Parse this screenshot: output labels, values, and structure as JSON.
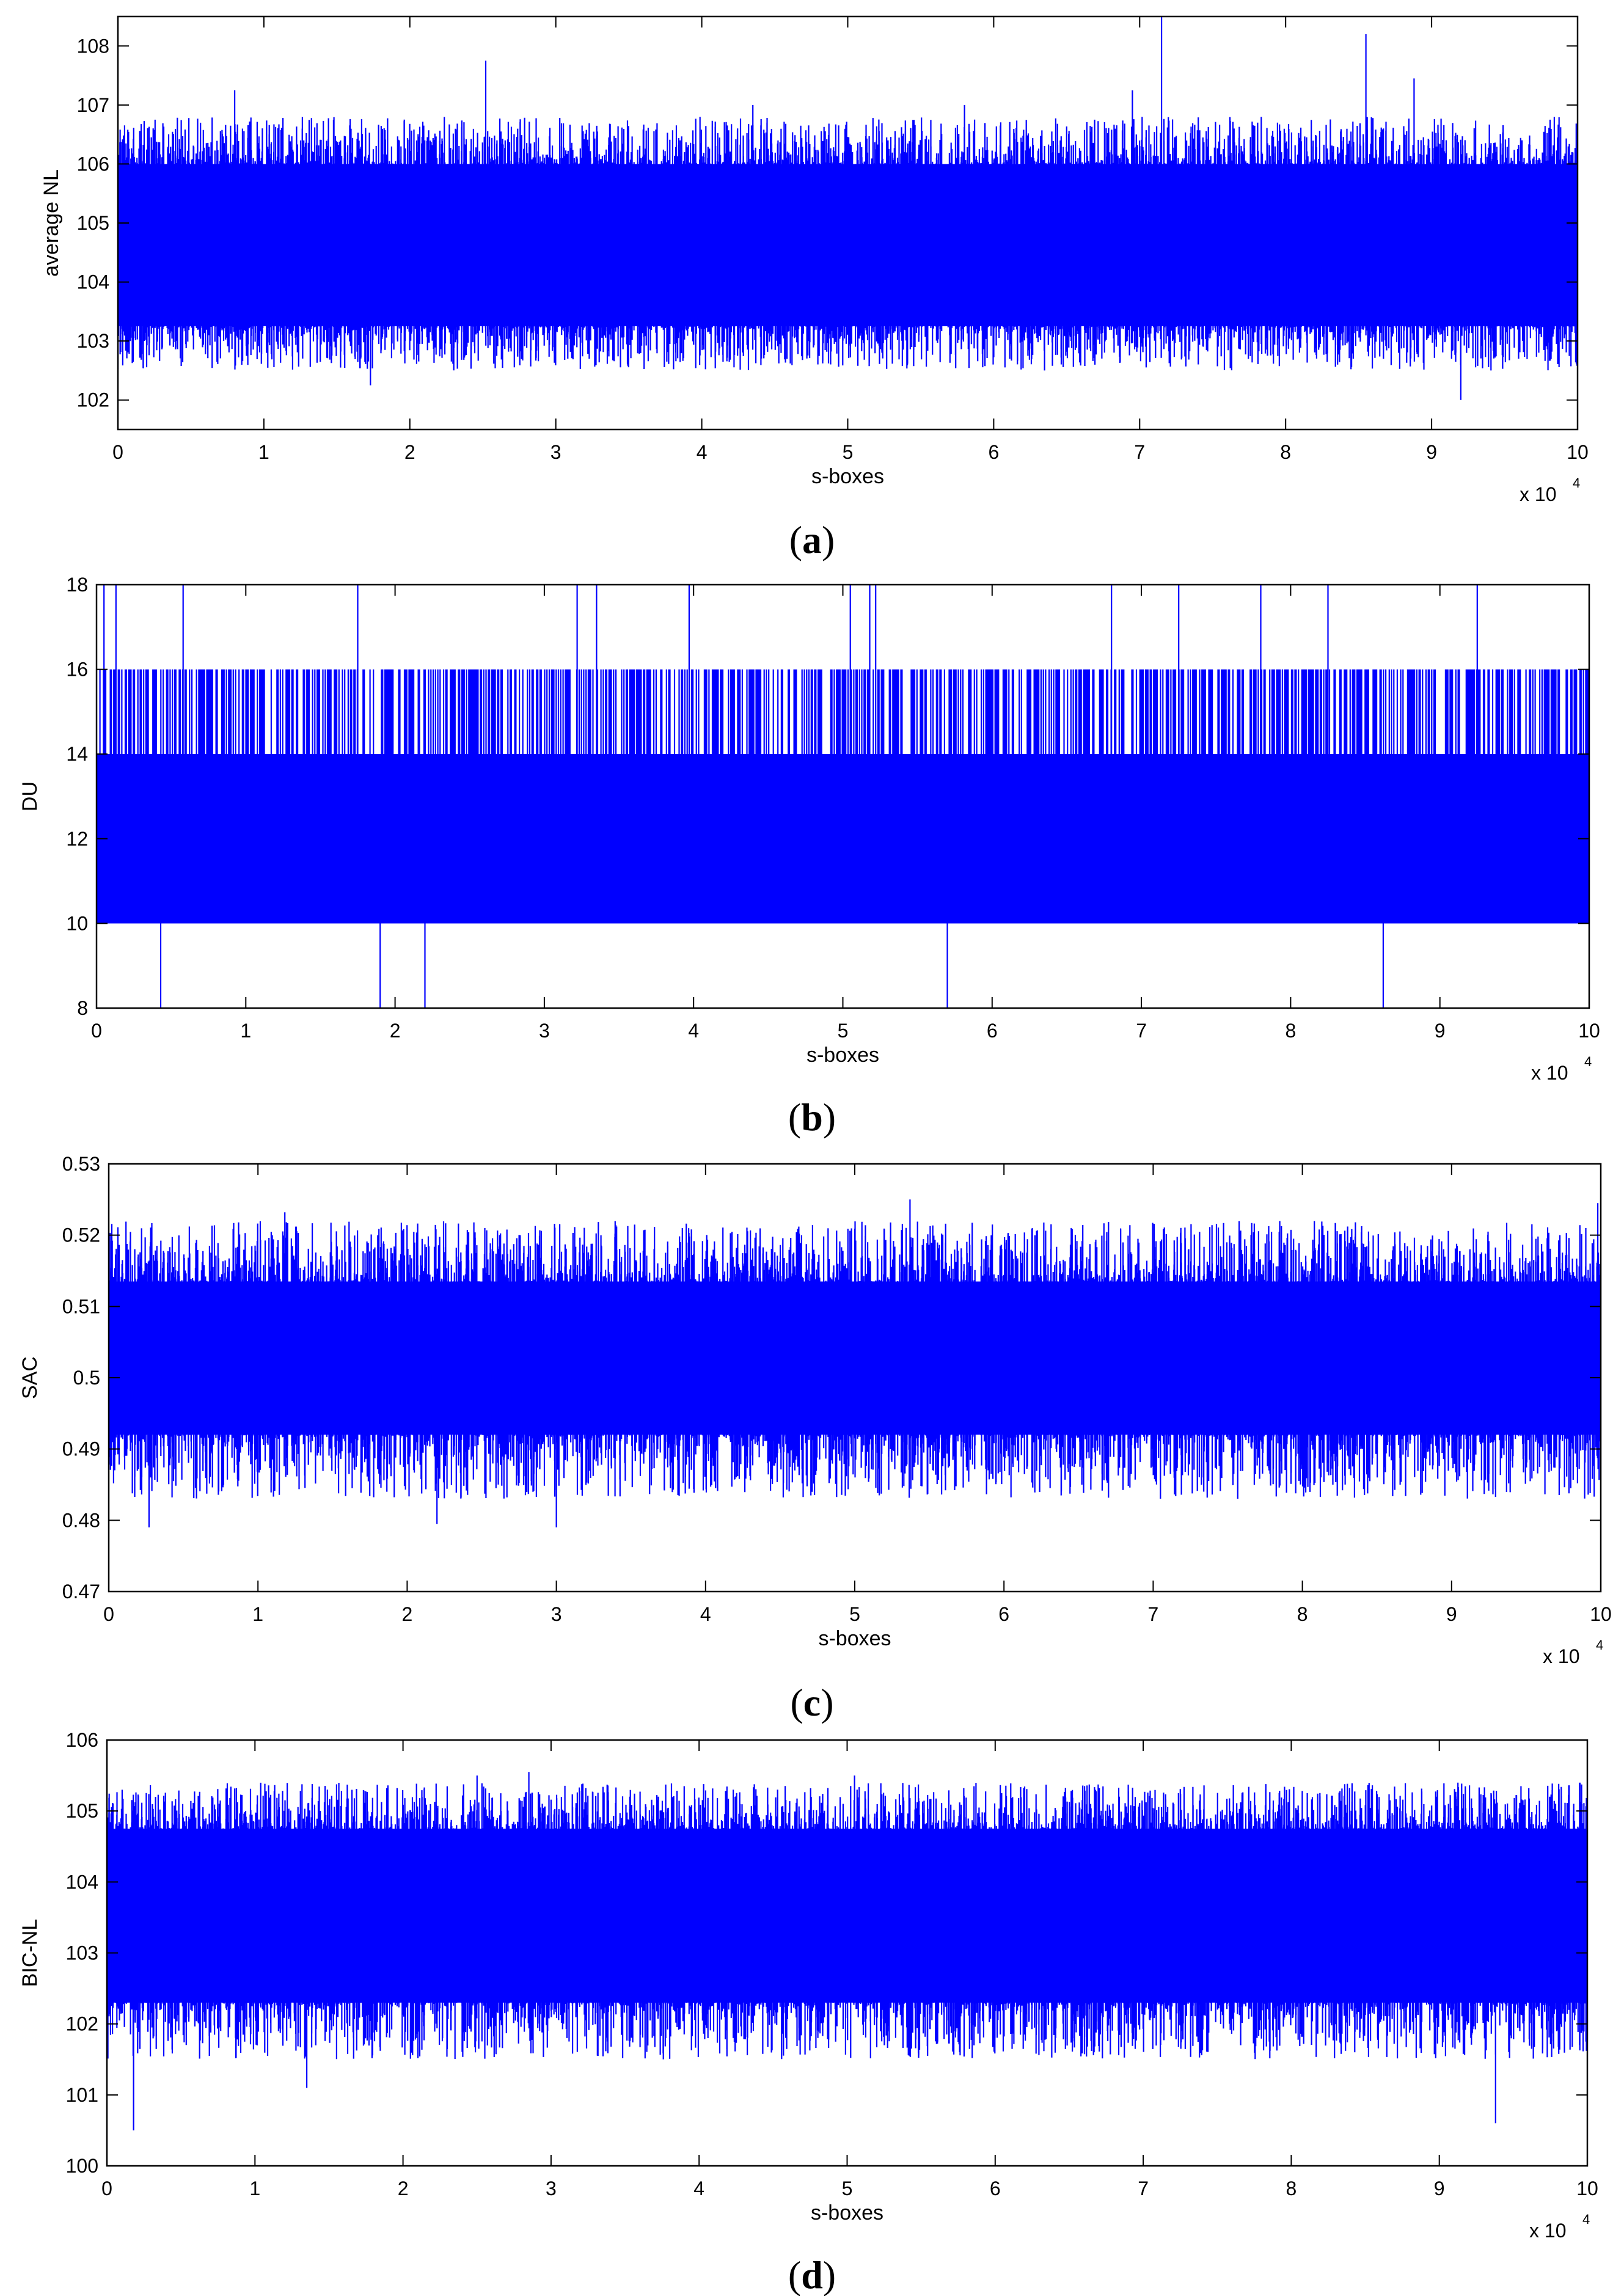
{
  "chart_data": [
    {
      "type": "line",
      "caption": "(a)",
      "caption_letter": "a",
      "xlabel": "s-boxes",
      "ylabel": "average NL",
      "x_multiplier": "x 10",
      "x_multiplier_exp": "4",
      "xlim": [
        0,
        10
      ],
      "ylim": [
        101.5,
        108.5
      ],
      "xticks": [
        0,
        1,
        2,
        3,
        4,
        5,
        6,
        7,
        8,
        9,
        10
      ],
      "yticks": [
        102,
        103,
        104,
        105,
        106,
        107,
        108
      ],
      "n_points": 100000,
      "band": {
        "low": 103.25,
        "high": 106.0
      },
      "typical_range": [
        102.5,
        106.8
      ],
      "spikes": [
        [
          2.52,
          107.75
        ],
        [
          7.15,
          108.5
        ],
        [
          8.55,
          108.2
        ],
        [
          8.88,
          107.45
        ],
        [
          6.95,
          107.25
        ],
        [
          0.8,
          107.25
        ],
        [
          1.73,
          102.25
        ],
        [
          9.2,
          102.0
        ],
        [
          4.35,
          107.0
        ],
        [
          5.8,
          107.0
        ]
      ],
      "series_color": "#0000FF"
    },
    {
      "type": "line",
      "caption": "(b)",
      "caption_letter": "b",
      "xlabel": "s-boxes",
      "ylabel": "DU",
      "x_multiplier": "x 10",
      "x_multiplier_exp": "4",
      "xlim": [
        0,
        10
      ],
      "ylim": [
        8,
        18
      ],
      "xticks": [
        0,
        1,
        2,
        3,
        4,
        5,
        6,
        7,
        8,
        9,
        10
      ],
      "yticks": [
        8,
        10,
        12,
        14,
        16,
        18
      ],
      "n_points": 100000,
      "band": {
        "low": 10,
        "high": 14
      },
      "level_values": [
        8,
        10,
        12,
        14,
        16,
        18
      ],
      "spikes_high": [
        0.05,
        0.13,
        0.58,
        1.75,
        3.22,
        3.35,
        3.97,
        5.05,
        5.18,
        5.22,
        6.8,
        7.25,
        7.8,
        8.25,
        9.25
      ],
      "spikes_low": [
        0.43,
        1.9,
        2.2,
        5.7,
        8.62
      ],
      "series_color": "#0000FF"
    },
    {
      "type": "line",
      "caption": "(c)",
      "caption_letter": "c",
      "xlabel": "s-boxes",
      "ylabel": "SAC",
      "x_multiplier": "x 10",
      "x_multiplier_exp": "4",
      "xlim": [
        0,
        10
      ],
      "ylim": [
        0.47,
        0.53
      ],
      "xticks": [
        0,
        1,
        2,
        3,
        4,
        5,
        6,
        7,
        8,
        9,
        10
      ],
      "yticks": [
        0.47,
        0.48,
        0.49,
        0.5,
        0.51,
        0.52,
        0.53
      ],
      "ytick_labels": [
        "0.47",
        "0.48",
        "0.49",
        "0.5",
        "0.51",
        "0.52",
        "0.53"
      ],
      "n_points": 100000,
      "band": {
        "low": 0.492,
        "high": 0.5135
      },
      "typical_range": [
        0.483,
        0.522
      ],
      "spikes": [
        [
          5.37,
          0.525
        ],
        [
          9.98,
          0.5245
        ],
        [
          1.18,
          0.5232
        ],
        [
          3.0,
          0.479
        ],
        [
          2.2,
          0.4795
        ],
        [
          0.27,
          0.479
        ]
      ],
      "series_color": "#0000FF"
    },
    {
      "type": "line",
      "caption": "(d)",
      "caption_letter": "d",
      "xlabel": "s-boxes",
      "ylabel": "BIC-NL",
      "x_multiplier": "x 10",
      "x_multiplier_exp": "4",
      "xlim": [
        0,
        10
      ],
      "ylim": [
        100,
        106
      ],
      "xticks": [
        0,
        1,
        2,
        3,
        4,
        5,
        6,
        7,
        8,
        9,
        10
      ],
      "yticks": [
        100,
        101,
        102,
        103,
        104,
        105,
        106
      ],
      "n_points": 100000,
      "band": {
        "low": 102.3,
        "high": 104.75
      },
      "typical_range": [
        101.5,
        105.4
      ],
      "spikes": [
        [
          0.18,
          100.5
        ],
        [
          9.38,
          100.6
        ],
        [
          1.35,
          101.1
        ],
        [
          2.85,
          105.55
        ],
        [
          2.5,
          105.5
        ],
        [
          5.05,
          105.5
        ],
        [
          9.95,
          105.4
        ]
      ],
      "series_color": "#0000FF"
    }
  ]
}
